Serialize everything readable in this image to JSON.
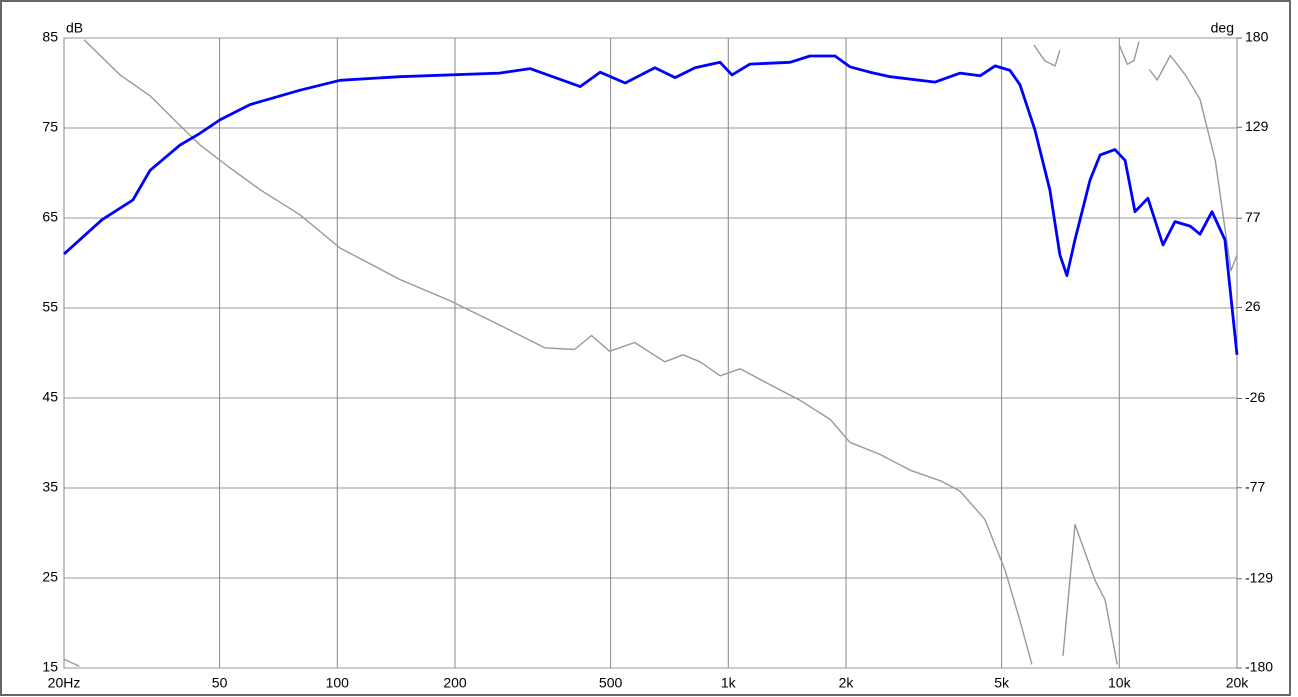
{
  "chart_data": {
    "type": "line",
    "y_label": "dB",
    "y2_label": "deg",
    "xscale": "log",
    "xlim": [
      20,
      20000
    ],
    "xticks": [
      {
        "value": 20,
        "label": "20Hz"
      },
      50,
      100,
      200,
      500,
      {
        "value": 1000,
        "label": "1k"
      },
      {
        "value": 2000,
        "label": "2k"
      },
      {
        "value": 5000,
        "label": "5k"
      },
      {
        "value": 10000,
        "label": "10k"
      },
      {
        "value": 20000,
        "label": "20k"
      }
    ],
    "ylim": [
      15,
      85
    ],
    "yticks": [
      15,
      25,
      35,
      45,
      55,
      65,
      75,
      85
    ],
    "y2lim": [
      -180,
      180
    ],
    "y2ticks": [
      -180,
      -129,
      -77,
      -26,
      26,
      77,
      129,
      180
    ],
    "grid": true,
    "series": [
      {
        "color": "#0000ff",
        "x": [
          20,
          25,
          30,
          33.2,
          39.6,
          44.5,
          50.1,
          59.8,
          80.3,
          101.6,
          144.6,
          260,
          311,
          418,
          470,
          545,
          649,
          731,
          822,
          953,
          1022,
          1136,
          1438,
          1618,
          1875,
          2047,
          2304,
          2593,
          3380,
          3918,
          4405,
          4811,
          5253,
          5574,
          6083,
          6646,
          7050,
          7346,
          7704,
          8417,
          8931,
          9747,
          10348,
          10968,
          11832,
          12935,
          13880,
          15170,
          16080,
          17260,
          18620,
          20000
        ],
        "values": [
          61,
          64.8,
          67,
          70.3,
          73.1,
          74.4,
          75.9,
          77.6,
          79.2,
          80.3,
          80.7,
          81.1,
          81.6,
          79.6,
          81.2,
          80,
          81.7,
          80.6,
          81.7,
          82.3,
          80.9,
          82.1,
          82.3,
          83,
          83,
          81.8,
          81.2,
          80.7,
          80.1,
          81.1,
          80.8,
          81.9,
          81.4,
          79.8,
          74.8,
          68.1,
          60.9,
          58.6,
          62.6,
          69.2,
          72,
          72.6,
          71.4,
          65.7,
          67.2,
          62,
          64.6,
          64.1,
          63.2,
          65.7,
          62.6,
          49.8
        ]
      },
      {
        "color": "#999999",
        "axis": "y2",
        "x": [
          20,
          21.9,
          22.2,
          22.5,
          27.8,
          33.2,
          39.6,
          44.5,
          53,
          63.8,
          80.3,
          101.6,
          144.6,
          193.6,
          260,
          339,
          404,
          447,
          497,
          576,
          688,
          766,
          847,
          953,
          1072,
          1276,
          1525,
          1823,
          2047,
          2446,
          2922,
          3489,
          3918,
          4530,
          5100,
          5574,
          5978,
          6010,
          6050,
          6450,
          6850,
          7050,
          7120,
          7180,
          7704,
          8672,
          9200,
          9880,
          9940,
          10000,
          10480,
          10900,
          11230,
          11600,
          11930,
          12500,
          13500,
          14750,
          16080,
          17600,
          19300,
          20000
        ],
        "values": [
          -175,
          -179,
          null,
          179,
          159,
          147,
          130,
          119,
          106,
          93,
          79,
          60,
          42,
          30,
          16,
          3,
          2,
          10,
          1,
          6,
          -5,
          -1,
          -5,
          -13,
          -9,
          -18,
          -27,
          -38,
          -51,
          -58,
          -67,
          -73,
          -79,
          -95,
          -124,
          -153,
          -178,
          null,
          176,
          167,
          164,
          173,
          null,
          -173,
          -98,
          -130,
          -141,
          -178,
          null,
          176,
          165,
          167,
          178,
          null,
          162,
          156,
          170,
          159,
          145,
          110,
          47,
          56
        ]
      }
    ]
  }
}
